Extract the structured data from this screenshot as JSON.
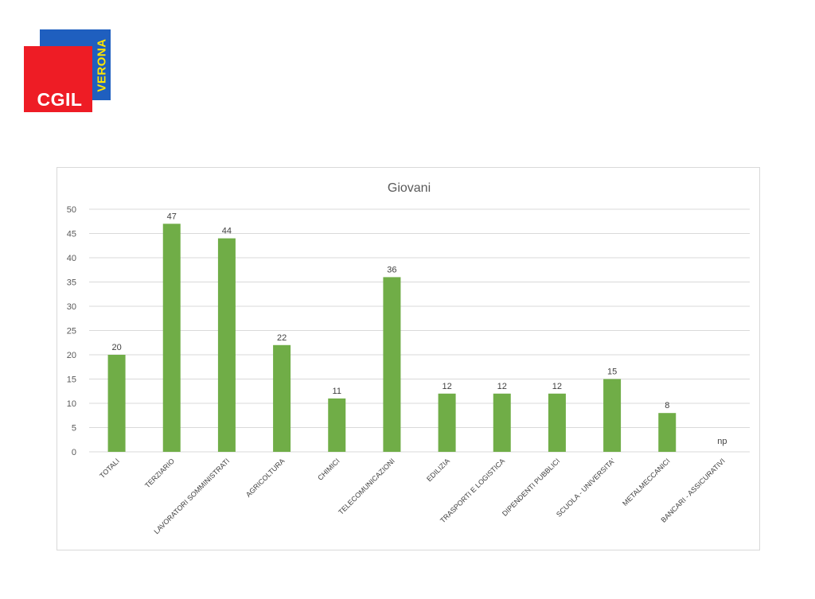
{
  "logo": {
    "primary_text": "CGIL",
    "secondary_text": "VERONA",
    "colors": {
      "red": "#ee1c25",
      "blue": "#1f5fbf",
      "yellow": "#ffe600"
    }
  },
  "chart_data": {
    "type": "bar",
    "title": "Giovani",
    "xlabel": "",
    "ylabel": "",
    "ylim": [
      0,
      50
    ],
    "yticks": [
      0,
      5,
      10,
      15,
      20,
      25,
      30,
      35,
      40,
      45,
      50
    ],
    "grid": true,
    "legend": "none",
    "bar_color": "#70ad47",
    "categories": [
      "TOTALI",
      "TERZIARIO",
      "LAVORATORI SOMMINISTRATI",
      "AGRICOLTURA",
      "CHIMICI",
      "TELECOMUNICAZIONI",
      "EDILIZIA",
      "TRASPORTI E LOGISTICA",
      "DIPENDENTI PUBBLICI",
      "SCUOLA - UNIVERSITA'",
      "METALMECCANICI",
      "BANCARI - ASSICURATIVI"
    ],
    "values": [
      20,
      47,
      44,
      22,
      11,
      36,
      12,
      12,
      12,
      15,
      8,
      null
    ],
    "data_labels": [
      "20",
      "47",
      "44",
      "22",
      "11",
      "36",
      "12",
      "12",
      "12",
      "15",
      "8",
      "np"
    ]
  }
}
